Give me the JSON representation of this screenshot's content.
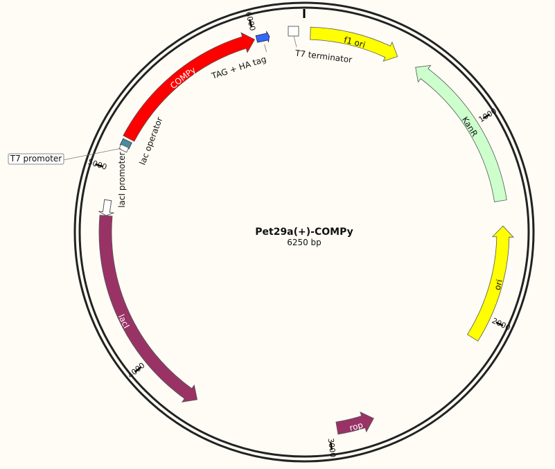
{
  "plasmid": {
    "name": "Pet29a(+)-COMPy",
    "size_label": "6250 bp",
    "length_bp": 6250
  },
  "ticks": [
    {
      "bp": 1000,
      "label": "1000"
    },
    {
      "bp": 2000,
      "label": "2000"
    },
    {
      "bp": 3000,
      "label": "3000"
    },
    {
      "bp": 4000,
      "label": "4000"
    },
    {
      "bp": 5000,
      "label": "5000"
    },
    {
      "bp": 6000,
      "label": "6000"
    }
  ],
  "features": [
    {
      "id": "f1-ori",
      "label": "f1 ori",
      "start": 31,
      "end": 486,
      "strand": 1,
      "color": "#ffff00",
      "text_color": "#111111"
    },
    {
      "id": "kanr",
      "label": "KanR",
      "start": 591,
      "end": 1406,
      "strand": -1,
      "color": "#ccffcc",
      "text_color": "#111111"
    },
    {
      "id": "ori",
      "label": "ori",
      "start": 1532,
      "end": 2120,
      "strand": -1,
      "color": "#ffff00",
      "text_color": "#111111"
    },
    {
      "id": "rop",
      "label": "rop",
      "start": 2770,
      "end": 2960,
      "strand": -1,
      "color": "#993366",
      "text_color": "#ffffff"
    },
    {
      "id": "laci",
      "label": "lacI",
      "start": 3690,
      "end": 4770,
      "strand": -1,
      "color": "#993366",
      "text_color": "#ffffff"
    },
    {
      "id": "compy",
      "label": "COMPy",
      "start": 5175,
      "end": 6000,
      "strand": 1,
      "color": "#ff0000",
      "text_color": "#ffffff"
    }
  ],
  "small_features": [
    {
      "id": "laci-promoter",
      "label": "lacI promoter",
      "start": 4770,
      "end": 4848,
      "kind": "promoter-arrow",
      "color": "#ffffff"
    },
    {
      "id": "t7-promoter",
      "label": "T7 promoter",
      "bp": 5120,
      "kind": "boxed-label",
      "color": "#ffffff"
    },
    {
      "id": "lac-operator",
      "label": "lac operator",
      "bp": 5145,
      "kind": "box",
      "color": "#4b8aa0"
    },
    {
      "id": "tag-ha-tag",
      "label": "TAG + HA tag",
      "start": 6010,
      "end": 6075,
      "kind": "small-arrow",
      "color": "#3366ff"
    },
    {
      "id": "t7-terminator",
      "label": "T7 terminator",
      "bp": 6250,
      "kind": "box",
      "color": "#ffffff"
    }
  ]
}
